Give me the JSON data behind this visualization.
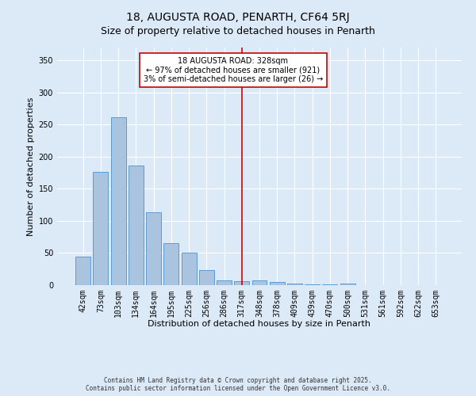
{
  "title": "18, AUGUSTA ROAD, PENARTH, CF64 5RJ",
  "subtitle": "Size of property relative to detached houses in Penarth",
  "xlabel": "Distribution of detached houses by size in Penarth",
  "ylabel": "Number of detached properties",
  "footer_line1": "Contains HM Land Registry data © Crown copyright and database right 2025.",
  "footer_line2": "Contains public sector information licensed under the Open Government Licence v3.0.",
  "categories": [
    "42sqm",
    "73sqm",
    "103sqm",
    "134sqm",
    "164sqm",
    "195sqm",
    "225sqm",
    "256sqm",
    "286sqm",
    "317sqm",
    "348sqm",
    "378sqm",
    "409sqm",
    "439sqm",
    "470sqm",
    "500sqm",
    "531sqm",
    "561sqm",
    "592sqm",
    "622sqm",
    "653sqm"
  ],
  "bar_values": [
    44,
    176,
    262,
    186,
    114,
    65,
    51,
    24,
    7,
    6,
    7,
    5,
    3,
    1,
    1,
    2,
    0,
    0,
    0,
    0,
    0
  ],
  "bar_color": "#aac4e0",
  "bar_edge_color": "#5b9bd5",
  "vline_bin_idx": 9,
  "annotation_label": "18 AUGUSTA ROAD: 328sqm",
  "annotation_line1": "← 97% of detached houses are smaller (921)",
  "annotation_line2": "3% of semi-detached houses are larger (26) →",
  "vline_color": "#cc0000",
  "annotation_box_color": "#ffffff",
  "annotation_box_edge": "#cc0000",
  "bg_color": "#dce9f7",
  "ylim": [
    0,
    370
  ],
  "yticks": [
    0,
    50,
    100,
    150,
    200,
    250,
    300,
    350
  ],
  "grid_color": "#ffffff",
  "title_fontsize": 10,
  "subtitle_fontsize": 9,
  "ylabel_fontsize": 8,
  "xlabel_fontsize": 8,
  "tick_fontsize": 7,
  "footer_fontsize": 5.5,
  "annotation_fontsize": 7
}
